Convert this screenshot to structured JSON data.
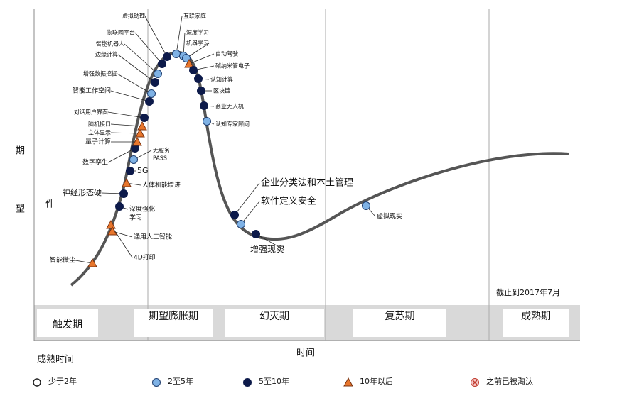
{
  "axis": {
    "y_label_top": "期",
    "y_label_bottom": "望",
    "stray": "件",
    "x_label": "时间",
    "maturity_label": "成熟时间",
    "date_note": "截止到2017年7月"
  },
  "phases": [
    "触发期",
    "期望膨胀期",
    "幻灭期",
    "复苏期",
    "成熟期"
  ],
  "legend": [
    "少于2年",
    "2至5年",
    "5至10年",
    "10年以后",
    "之前已被淘汰"
  ],
  "nodes": [
    {
      "lines": [
        "智能微尘"
      ],
      "maturity": "10年以后"
    },
    {
      "lines": [
        "4D打印"
      ],
      "maturity": "10年以后"
    },
    {
      "lines": [
        "通用人工智能"
      ],
      "maturity": "10年以后"
    },
    {
      "lines": [
        "深度强化",
        "学习"
      ],
      "maturity": "5至10年"
    },
    {
      "lines": [
        "神经形态硬"
      ],
      "maturity": "5至10年"
    },
    {
      "lines": [
        "人体机能增进"
      ],
      "maturity": "10年以后"
    },
    {
      "lines": [
        "5G"
      ],
      "maturity": "5至10年"
    },
    {
      "lines": [
        "无服务",
        "PASS"
      ],
      "maturity": "2至5年"
    },
    {
      "lines": [
        "数字孪生"
      ],
      "maturity": "5至10年"
    },
    {
      "lines": [
        "量子计算"
      ],
      "maturity": "10年以后"
    },
    {
      "lines": [
        "立体显示"
      ],
      "maturity": "10年以后"
    },
    {
      "lines": [
        "脑机接口"
      ],
      "maturity": "10年以后"
    },
    {
      "lines": [
        "对话用户界面"
      ],
      "maturity": "5至10年"
    },
    {
      "lines": [
        "智能工作空间"
      ],
      "maturity": "5至10年"
    },
    {
      "lines": [
        "增强数据挖掘"
      ],
      "maturity": "2至5年"
    },
    {
      "lines": [
        "边缘计算"
      ],
      "maturity": "5至10年"
    },
    {
      "lines": [
        "智能机器人"
      ],
      "maturity": "2至5年"
    },
    {
      "lines": [
        "物联网平台"
      ],
      "maturity": "5至10年"
    },
    {
      "lines": [
        "虚拟助理"
      ],
      "maturity": "5至10年"
    },
    {
      "lines": [
        "互联家庭"
      ],
      "maturity": "2至5年"
    },
    {
      "lines": [
        "深度学习"
      ],
      "maturity": "2至5年"
    },
    {
      "lines": [
        "机器学习"
      ],
      "maturity": "2至5年"
    },
    {
      "lines": [
        "自动驾驶"
      ],
      "maturity": "10年以后"
    },
    {
      "lines": [
        "碳纳米管电子"
      ],
      "maturity": "5至10年"
    },
    {
      "lines": [
        "认知计算"
      ],
      "maturity": "5至10年"
    },
    {
      "lines": [
        "区块链"
      ],
      "maturity": "5至10年"
    },
    {
      "lines": [
        "商业无人机"
      ],
      "maturity": "5至10年"
    },
    {
      "lines": [
        "认知专家顾问"
      ],
      "maturity": "2至5年"
    },
    {
      "lines": [
        "企业分类法和本土管理"
      ],
      "maturity": "5至10年"
    },
    {
      "lines": [
        "软件定义安全"
      ],
      "maturity": "2至5年"
    },
    {
      "lines": [
        "增强现实"
      ],
      "maturity": "5至10年"
    },
    {
      "lines": [
        "虚拟现实"
      ],
      "maturity": "2至5年"
    }
  ]
}
